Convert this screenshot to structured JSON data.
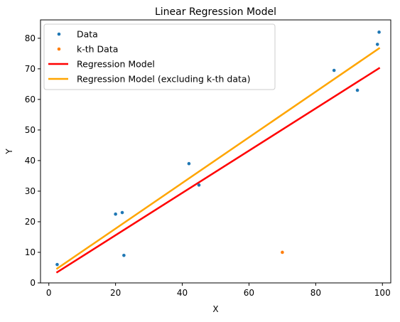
{
  "chart_data": {
    "type": "scatter",
    "title": "Linear Regression Model",
    "xlabel": "X",
    "ylabel": "Y",
    "xlim": [
      -2.5,
      102.5
    ],
    "ylim": [
      0,
      86
    ],
    "xticks": [
      0,
      20,
      40,
      60,
      80,
      100
    ],
    "yticks": [
      0,
      10,
      20,
      30,
      40,
      50,
      60,
      70,
      80
    ],
    "grid": false,
    "legend_position": "top-left",
    "series": [
      {
        "name": "Data",
        "kind": "scatter",
        "color": "#1f77b4",
        "points": [
          {
            "x": 2.5,
            "y": 6
          },
          {
            "x": 20.0,
            "y": 22.5
          },
          {
            "x": 22.0,
            "y": 23
          },
          {
            "x": 22.5,
            "y": 9
          },
          {
            "x": 42.0,
            "y": 39
          },
          {
            "x": 45.0,
            "y": 32
          },
          {
            "x": 85.5,
            "y": 69.5
          },
          {
            "x": 92.5,
            "y": 63
          },
          {
            "x": 98.5,
            "y": 78
          },
          {
            "x": 99.0,
            "y": 82
          }
        ]
      },
      {
        "name": "k-th Data",
        "kind": "scatter",
        "color": "#ff7f0e",
        "points": [
          {
            "x": 70.0,
            "y": 10
          }
        ]
      },
      {
        "name": "Regression Model",
        "kind": "line",
        "color": "#ff0000",
        "points": [
          {
            "x": 2.5,
            "y": 3.5
          },
          {
            "x": 99.0,
            "y": 70.2
          }
        ]
      },
      {
        "name": "Regression Model (excluding k-th data)",
        "kind": "line",
        "color": "#ffa500",
        "points": [
          {
            "x": 2.5,
            "y": 4.7
          },
          {
            "x": 99.0,
            "y": 76.7
          }
        ]
      }
    ]
  }
}
